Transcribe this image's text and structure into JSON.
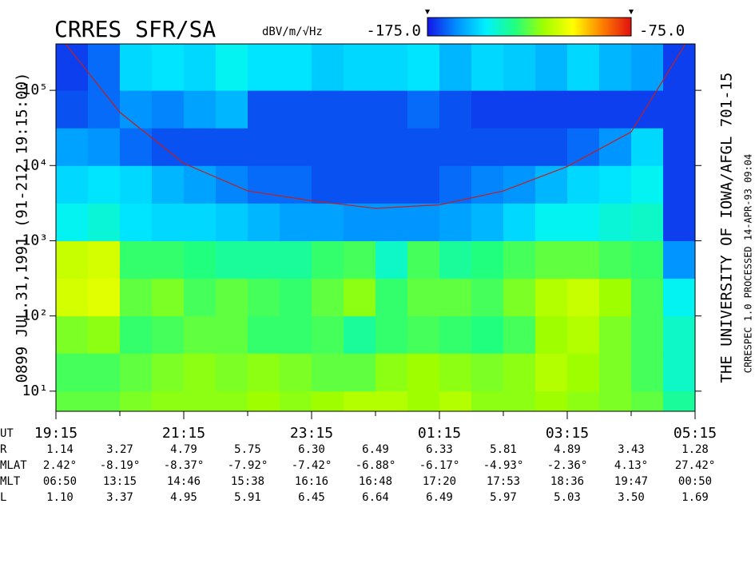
{
  "chart_data": {
    "type": "heatmap",
    "title": "CRRES SFR/SA",
    "colorbar_label": "dBV/m/√Hz",
    "zticks": [
      {
        "value": -175,
        "label": "-175.0"
      },
      {
        "value": -75,
        "label": "-75.0"
      }
    ],
    "colorscale": [
      "#1414e6",
      "#0090ff",
      "#00f0ff",
      "#20ff80",
      "#a0ff00",
      "#ffff00",
      "#ff8000",
      "#e01010"
    ],
    "left_label": "0899   JUL.31,1991   (91-212 19:15:00)",
    "right_label": "THE UNIVERSITY OF IOWA/AFGL 701-15",
    "credit_label": "CRRESPEC 1.0   PROCESSED 14-APR-93 09:04",
    "log_y": true,
    "ylim": [
      5.4,
      414000
    ],
    "yticks": [
      {
        "value": 10,
        "label": "10¹"
      },
      {
        "value": 100,
        "label": "10²"
      },
      {
        "value": 1000,
        "label": "10³"
      },
      {
        "value": 10000,
        "label": "10⁴"
      },
      {
        "value": 100000,
        "label": "10⁵"
      }
    ],
    "xlim": [
      0,
      10
    ],
    "x_label": "UT",
    "xticks": [
      {
        "value": 0,
        "label": "19:15"
      },
      {
        "value": 2,
        "label": "21:15"
      },
      {
        "value": 4,
        "label": "23:15"
      },
      {
        "value": 6,
        "label": "01:15"
      },
      {
        "value": 8,
        "label": "03:15"
      },
      {
        "value": 10,
        "label": "05:15"
      }
    ],
    "xminor": [
      1,
      3,
      5,
      7,
      9
    ],
    "xbins": [
      0,
      0.5,
      1,
      1.5,
      2,
      2.5,
      3,
      3.5,
      4,
      4.5,
      5,
      5.5,
      6,
      6.5,
      7,
      7.5,
      8,
      8.5,
      9,
      9.5,
      10
    ],
    "ybins": [
      5.4,
      10,
      32,
      100,
      316,
      1000,
      3162,
      10000,
      31623,
      100000,
      414000
    ],
    "z": [
      [
        -125,
        -125,
        -122,
        -120,
        -120,
        -120,
        -118,
        -120,
        -118,
        -115,
        -115,
        -118,
        -115,
        -120,
        -120,
        -118,
        -120,
        -122,
        -125,
        -135
      ],
      [
        -128,
        -128,
        -125,
        -122,
        -120,
        -122,
        -120,
        -122,
        -125,
        -125,
        -120,
        -118,
        -120,
        -122,
        -120,
        -115,
        -118,
        -122,
        -128,
        -140
      ],
      [
        -122,
        -120,
        -130,
        -128,
        -125,
        -125,
        -130,
        -130,
        -128,
        -135,
        -130,
        -128,
        -130,
        -132,
        -128,
        -118,
        -115,
        -122,
        -128,
        -140
      ],
      [
        -110,
        -108,
        -125,
        -122,
        -128,
        -125,
        -128,
        -130,
        -125,
        -120,
        -130,
        -125,
        -125,
        -128,
        -122,
        -115,
        -112,
        -118,
        -128,
        -145
      ],
      [
        -112,
        -110,
        -130,
        -130,
        -132,
        -135,
        -135,
        -135,
        -130,
        -128,
        -140,
        -128,
        -135,
        -132,
        -128,
        -125,
        -125,
        -128,
        -130,
        -160
      ],
      [
        -145,
        -142,
        -148,
        -150,
        -150,
        -152,
        -155,
        -158,
        -158,
        -160,
        -160,
        -160,
        -158,
        -155,
        -150,
        -145,
        -145,
        -142,
        -140,
        -170
      ],
      [
        -150,
        -148,
        -150,
        -155,
        -158,
        -162,
        -165,
        -165,
        -168,
        -168,
        -168,
        -168,
        -165,
        -162,
        -160,
        -155,
        -150,
        -148,
        -145,
        -170
      ],
      [
        -158,
        -160,
        -165,
        -168,
        -168,
        -168,
        -168,
        -168,
        -168,
        -168,
        -168,
        -168,
        -168,
        -168,
        -168,
        -168,
        -165,
        -160,
        -150,
        -170
      ],
      [
        -168,
        -165,
        -160,
        -162,
        -158,
        -155,
        -168,
        -168,
        -168,
        -168,
        -168,
        -165,
        -168,
        -170,
        -170,
        -170,
        -170,
        -170,
        -170,
        -170
      ],
      [
        -170,
        -165,
        -150,
        -148,
        -150,
        -145,
        -148,
        -148,
        -152,
        -150,
        -150,
        -148,
        -155,
        -150,
        -152,
        -155,
        -150,
        -155,
        -158,
        -170
      ]
    ],
    "line": {
      "color": "#c02020",
      "x": [
        0.15,
        1,
        2,
        3,
        4,
        5,
        6,
        7,
        8,
        9,
        9.85
      ],
      "values": [
        414000,
        51000,
        10700,
        4600,
        3400,
        2700,
        3000,
        4600,
        9700,
        28000,
        414000
      ]
    },
    "ephemeris": [
      {
        "name": "R",
        "values": [
          "1.14",
          "3.27",
          "4.79",
          "5.75",
          "6.30",
          "6.49",
          "6.33",
          "5.81",
          "4.89",
          "3.43",
          "1.28"
        ]
      },
      {
        "name": "MLAT",
        "values": [
          "2.42°",
          "-8.19°",
          "-8.37°",
          "-7.92°",
          "-7.42°",
          "-6.88°",
          "-6.17°",
          "-4.93°",
          "-2.36°",
          "4.13°",
          "27.42°"
        ]
      },
      {
        "name": "MLT",
        "values": [
          "06:50",
          "13:15",
          "14:46",
          "15:38",
          "16:16",
          "16:48",
          "17:20",
          "17:53",
          "18:36",
          "19:47",
          "00:50"
        ]
      },
      {
        "name": "L",
        "values": [
          "1.10",
          "3.37",
          "4.95",
          "5.91",
          "6.45",
          "6.64",
          "6.49",
          "5.97",
          "5.03",
          "3.50",
          "1.69"
        ]
      }
    ]
  }
}
